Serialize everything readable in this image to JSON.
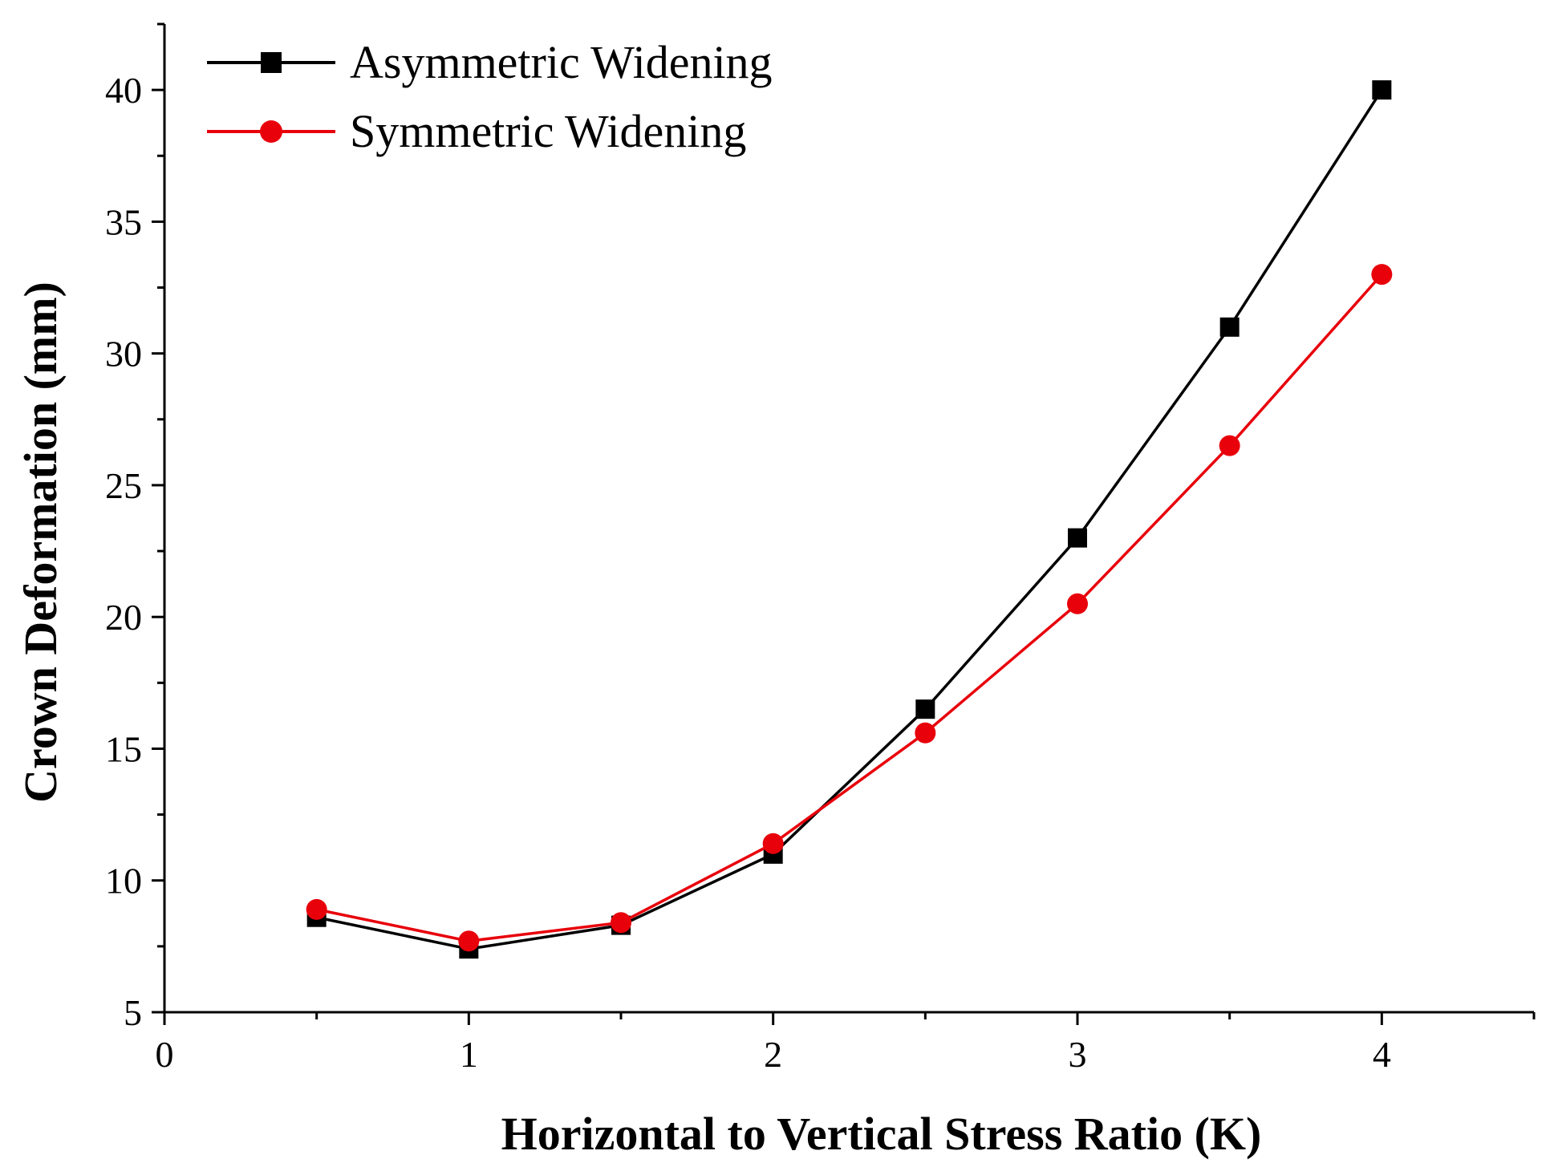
{
  "chart_data": {
    "type": "line",
    "title": "",
    "xlabel": "Horizontal to Vertical Stress Ratio (K)",
    "ylabel": "Crown Deformation (mm)",
    "xlim": [
      0,
      4.5
    ],
    "ylim": [
      5,
      42.5
    ],
    "xticks": [
      0,
      1,
      2,
      3,
      4
    ],
    "xtick_labels": [
      "0",
      "1",
      "2",
      "3",
      "4"
    ],
    "xminor_ticks": [
      0.5,
      1.5,
      2.5,
      3.5,
      4.5
    ],
    "yticks": [
      5,
      10,
      15,
      20,
      25,
      30,
      35,
      40
    ],
    "ytick_labels": [
      "5",
      "10",
      "15",
      "20",
      "25",
      "30",
      "35",
      "40"
    ],
    "yminor_ticks": [
      7.5,
      12.5,
      17.5,
      22.5,
      27.5,
      32.5,
      37.5,
      42.5
    ],
    "grid": false,
    "legend_position": "top-left",
    "x": [
      0.5,
      1,
      1.5,
      2,
      2.5,
      3,
      3.5,
      4
    ],
    "series": [
      {
        "name": "Asymmetric Widening",
        "color": "#000000",
        "marker": "square",
        "values": [
          8.6,
          7.4,
          8.3,
          11.0,
          16.5,
          23.0,
          31.0,
          40.0
        ]
      },
      {
        "name": "Symmetric Widening",
        "color": "#e8000b",
        "marker": "circle",
        "values": [
          8.9,
          7.7,
          8.4,
          11.4,
          15.6,
          20.5,
          26.5,
          33.0
        ]
      }
    ]
  }
}
